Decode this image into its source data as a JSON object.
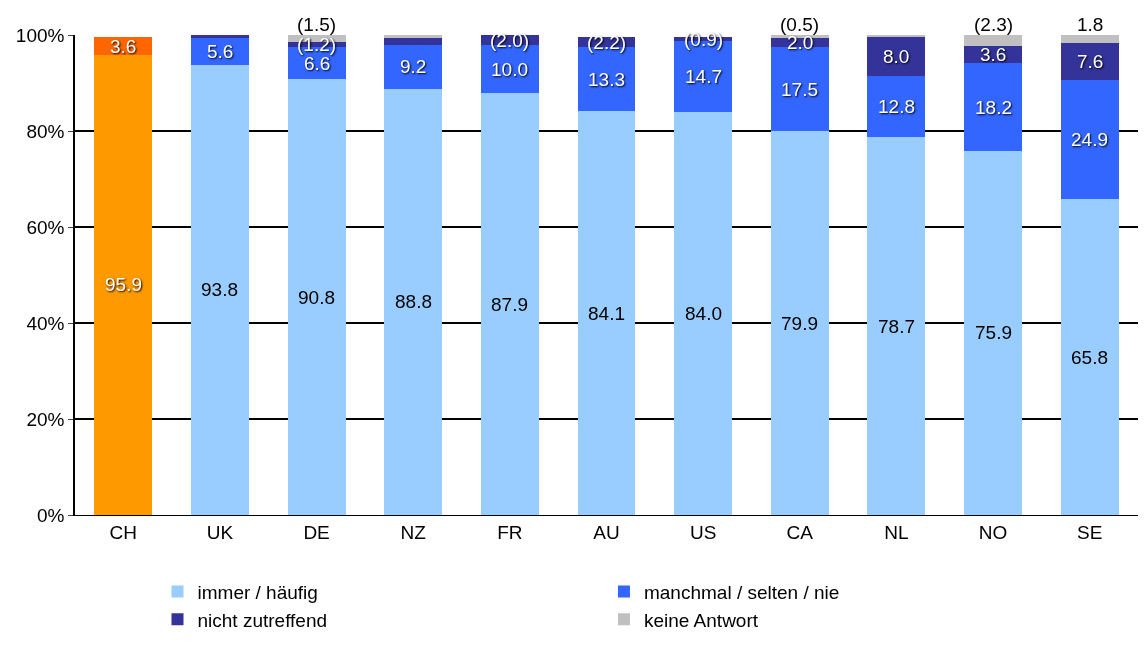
{
  "chart_data": {
    "type": "bar",
    "stacked": true,
    "categories": [
      "CH",
      "UK",
      "DE",
      "NZ",
      "FR",
      "AU",
      "US",
      "CA",
      "NL",
      "NO",
      "SE"
    ],
    "series": [
      {
        "name": "immer / häufig",
        "color": "#99ccff",
        "colors": [
          "#ff9900",
          "#99ccff",
          "#99ccff",
          "#99ccff",
          "#99ccff",
          "#99ccff",
          "#99ccff",
          "#99ccff",
          "#99ccff",
          "#99ccff",
          "#99ccff"
        ],
        "values": [
          95.9,
          93.8,
          90.8,
          88.8,
          87.9,
          84.1,
          84.0,
          79.9,
          78.7,
          75.9,
          65.8
        ],
        "value_labels": [
          "95.9",
          "93.8",
          "90.8",
          "88.8",
          "87.9",
          "84.1",
          "84.0",
          "79.9",
          "78.7",
          "75.9",
          "65.8"
        ]
      },
      {
        "name": "manchmal / selten / nie",
        "color": "#3366ff",
        "colors": [
          "#ff6600",
          "#3366ff",
          "#3366ff",
          "#3366ff",
          "#3366ff",
          "#3366ff",
          "#3366ff",
          "#3366ff",
          "#3366ff",
          "#3366ff",
          "#3366ff"
        ],
        "values": [
          3.6,
          5.6,
          6.6,
          9.2,
          10.0,
          13.3,
          14.7,
          17.5,
          12.8,
          18.2,
          24.9
        ],
        "value_labels": [
          "3.6",
          "5.6",
          "6.6",
          "9.2",
          "10.0",
          "13.3",
          "14.7",
          "17.5",
          "12.8",
          "18.2",
          "24.9"
        ]
      },
      {
        "name": "nicht zutreffend",
        "color": "#333399",
        "values": [
          null,
          0.6,
          1.2,
          1.3,
          2.0,
          2.2,
          0.9,
          2.0,
          8.0,
          3.6,
          7.6
        ],
        "value_labels": [
          null,
          null,
          "(1.2)",
          null,
          "(2.0)",
          "(2.2)",
          "(0.9)",
          "2.0",
          "8.0",
          "3.6",
          "7.6"
        ]
      },
      {
        "name": "keine Antwort",
        "color": "#c0c0c0",
        "values": [
          null,
          null,
          1.5,
          0.7,
          null,
          null,
          null,
          0.5,
          0.5,
          2.3,
          1.8
        ],
        "value_labels": [
          null,
          null,
          "(1.5)",
          null,
          null,
          null,
          null,
          "(0.5)",
          null,
          "(2.3)",
          "1.8"
        ]
      }
    ],
    "ylim": [
      0,
      100
    ],
    "yticks": [
      {
        "value": 0,
        "label": "0%"
      },
      {
        "value": 20,
        "label": "20%"
      },
      {
        "value": 40,
        "label": "40%"
      },
      {
        "value": 60,
        "label": "60%"
      },
      {
        "value": 80,
        "label": "80%"
      },
      {
        "value": 100,
        "label": "100%"
      }
    ],
    "grid": "y",
    "legend": "bottom"
  }
}
